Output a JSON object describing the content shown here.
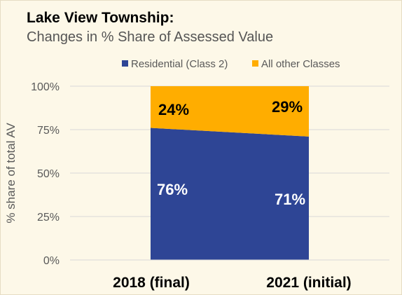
{
  "title": "Lake View Township:",
  "subtitle": "Changes in % Share of Assessed Value",
  "chart_data": {
    "type": "area",
    "categories": [
      "2018 (final)",
      "2021 (initial)"
    ],
    "series": [
      {
        "name": "Residential (Class 2)",
        "values": [
          76,
          71
        ],
        "labels": [
          "76%",
          "71%"
        ],
        "color": "#2e4595"
      },
      {
        "name": "All other Classes",
        "values": [
          24,
          29
        ],
        "labels": [
          "24%",
          "29%"
        ],
        "color": "#ffad00"
      }
    ],
    "stacked": true,
    "ylabel": "% share of total AV",
    "ylim": [
      0,
      100
    ],
    "yticks": [
      0,
      25,
      50,
      75,
      100
    ],
    "ytick_labels": [
      "0%",
      "25%",
      "50%",
      "75%",
      "100%"
    ],
    "legend_position": "top",
    "grid": true
  }
}
